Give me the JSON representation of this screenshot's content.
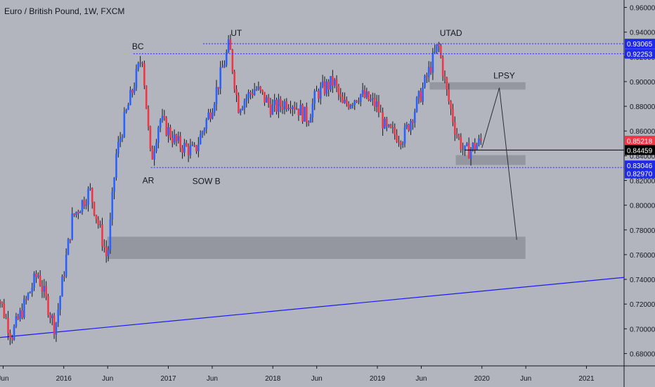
{
  "header": {
    "symbol": "Euro / British Pound",
    "interval": "1W",
    "exchange": "FXCM"
  },
  "colors": {
    "background": "#b2b5be",
    "up": "#2962ff",
    "down": "#f23645",
    "wick": "#131722",
    "trendline": "#1a1aff",
    "level_line": "#2a2aff",
    "zone": "#8f929b",
    "label_blue": "#1f29e8",
    "label_red": "#f23645",
    "label_black": "#000000"
  },
  "chart_data": {
    "type": "candlestick",
    "title": "Euro / British Pound, 1W, FXCM",
    "ylim": [
      0.67,
      0.966
    ],
    "y_ticks": [
      "0.68000",
      "0.70000",
      "0.72000",
      "0.74000",
      "0.76000",
      "0.78000",
      "0.80000",
      "0.82000",
      "0.84000",
      "0.86000",
      "0.88000",
      "0.90000",
      "0.92000",
      "0.94000",
      "0.96000"
    ],
    "x_ticks": [
      "Jun",
      "2016",
      "Jun",
      "2017",
      "Jun",
      "2018",
      "Jun",
      "2019",
      "Jun",
      "2020",
      "Jun",
      "2021"
    ],
    "price_labels": [
      {
        "text": "0.93065",
        "value": 0.93065,
        "style": "blue"
      },
      {
        "text": "0.92253",
        "value": 0.92253,
        "style": "blue"
      },
      {
        "text": "0.85218",
        "value": 0.85218,
        "style": "red"
      },
      {
        "text": "0.84459",
        "value": 0.84459,
        "style": "black"
      },
      {
        "text": "0.83046",
        "value": 0.83046,
        "style": "blue"
      },
      {
        "text": "0.82970",
        "value": 0.8297,
        "style": "blue"
      }
    ],
    "annotations": [
      "BC",
      "UT",
      "UTAD",
      "AR",
      "SOW B",
      "LPSY"
    ],
    "levels": [
      {
        "value": 0.93065,
        "from": "2017-05",
        "to": "end"
      },
      {
        "value": 0.92253,
        "from": "2016-09",
        "to": "end"
      },
      {
        "value": 0.83046,
        "from": "2016-11",
        "to": "end"
      },
      {
        "value": 0.84459,
        "from": "2019-11",
        "to": "end"
      }
    ],
    "zones": [
      {
        "from": "2016-06",
        "to": "2020-06",
        "low": 0.7565,
        "high": 0.7745
      },
      {
        "from": "2019-10",
        "to": "2020-06",
        "low": 0.8325,
        "high": 0.8405
      },
      {
        "from": "2019-07",
        "to": "2020-06",
        "low": 0.8935,
        "high": 0.8995
      }
    ],
    "projection": [
      {
        "date": "2020-01",
        "value": 0.8465
      },
      {
        "date": "2020-03",
        "value": 0.895
      },
      {
        "date": "2020-05",
        "value": 0.772
      }
    ],
    "trendline": [
      {
        "date": "2015-05",
        "value": 0.6925
      },
      {
        "date": "2021-03",
        "value": 0.74
      }
    ],
    "anchors": [
      {
        "date": "2015-05",
        "value": 0.738
      },
      {
        "date": "2015-07",
        "value": 0.6945
      },
      {
        "date": "2015-10",
        "value": 0.745
      },
      {
        "date": "2015-12",
        "value": 0.7
      },
      {
        "date": "2016-02",
        "value": 0.79
      },
      {
        "date": "2016-04",
        "value": 0.812
      },
      {
        "date": "2016-06",
        "value": 0.756
      },
      {
        "date": "2016-07",
        "value": 0.84
      },
      {
        "date": "2016-08",
        "value": 0.87
      },
      {
        "date": "2016-10",
        "value": 0.922
      },
      {
        "date": "2016-11",
        "value": 0.835
      },
      {
        "date": "2016-12",
        "value": 0.87
      },
      {
        "date": "2017-02",
        "value": 0.85
      },
      {
        "date": "2017-04",
        "value": 0.843
      },
      {
        "date": "2017-06",
        "value": 0.88
      },
      {
        "date": "2017-08",
        "value": 0.93
      },
      {
        "date": "2017-09",
        "value": 0.88
      },
      {
        "date": "2017-11",
        "value": 0.895
      },
      {
        "date": "2018-01",
        "value": 0.878
      },
      {
        "date": "2018-03",
        "value": 0.885
      },
      {
        "date": "2018-05",
        "value": 0.87
      },
      {
        "date": "2018-06",
        "value": 0.89
      },
      {
        "date": "2018-08",
        "value": 0.9
      },
      {
        "date": "2018-09",
        "value": 0.88
      },
      {
        "date": "2018-11",
        "value": 0.89
      },
      {
        "date": "2019-01",
        "value": 0.88
      },
      {
        "date": "2019-02",
        "value": 0.86
      },
      {
        "date": "2019-04",
        "value": 0.855
      },
      {
        "date": "2019-06",
        "value": 0.89
      },
      {
        "date": "2019-08",
        "value": 0.93
      },
      {
        "date": "2019-09",
        "value": 0.89
      },
      {
        "date": "2019-10",
        "value": 0.86
      },
      {
        "date": "2019-11",
        "value": 0.842
      },
      {
        "date": "2020-01",
        "value": 0.852
      }
    ]
  }
}
